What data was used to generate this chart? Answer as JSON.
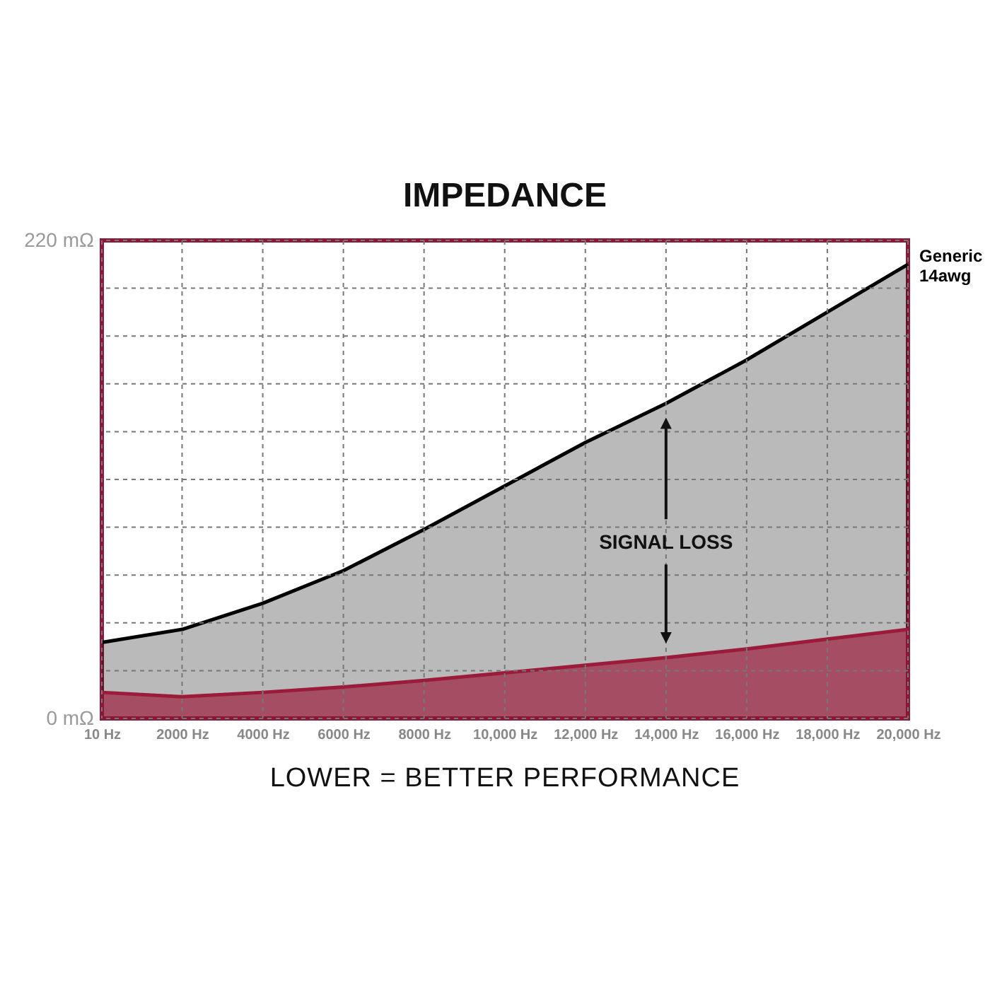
{
  "chart_data": {
    "type": "area",
    "title": "IMPEDANCE",
    "x": [
      10,
      2000,
      4000,
      6000,
      8000,
      10000,
      12000,
      14000,
      16000,
      18000,
      20000
    ],
    "series": [
      {
        "name": "Generic 14awg",
        "color": "#000000",
        "values": [
          35,
          41,
          53,
          68,
          87,
          107,
          127,
          145,
          165,
          187,
          209
        ]
      },
      {
        "color": "#9b1b3a",
        "values": [
          12,
          10,
          12,
          14.5,
          17.5,
          21,
          24.5,
          28,
          32,
          36.5,
          41
        ]
      }
    ],
    "xlim": [
      10,
      20000
    ],
    "xticks": [
      {
        "value": 10,
        "label": "10 Hz"
      },
      {
        "value": 2000,
        "label": "2000 Hz"
      },
      {
        "value": 4000,
        "label": "4000 Hz"
      },
      {
        "value": 6000,
        "label": "6000 Hz"
      },
      {
        "value": 8000,
        "label": "8000 Hz"
      },
      {
        "value": 10000,
        "label": "10,000 Hz"
      },
      {
        "value": 12000,
        "label": "12,000 Hz"
      },
      {
        "value": 14000,
        "label": "14,000 Hz"
      },
      {
        "value": 16000,
        "label": "16,000 Hz"
      },
      {
        "value": 18000,
        "label": "18,000 Hz"
      },
      {
        "value": 20000,
        "label": "20,000 Hz"
      }
    ],
    "ylim": [
      0,
      220
    ],
    "yticks": [
      {
        "value": 0,
        "label": "0 mΩ"
      },
      {
        "value": 22,
        "label": null
      },
      {
        "value": 44,
        "label": null
      },
      {
        "value": 66,
        "label": null
      },
      {
        "value": 88,
        "label": null
      },
      {
        "value": 110,
        "label": null
      },
      {
        "value": 132,
        "label": null
      },
      {
        "value": 154,
        "label": null
      },
      {
        "value": 176,
        "label": null
      },
      {
        "value": 198,
        "label": null
      },
      {
        "value": 220,
        "label": "220 mΩ"
      }
    ],
    "grid": true,
    "annotations": [
      "SIGNAL LOSS",
      "LOWER = BETTER PERFORMANCE"
    ]
  }
}
